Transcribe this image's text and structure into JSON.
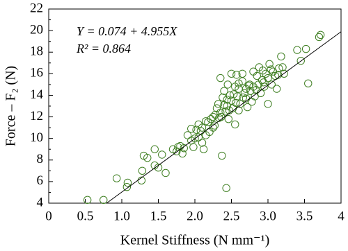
{
  "chart_data": {
    "type": "scatter",
    "xlabel": "Kernel Stiffness (N mm⁻¹)",
    "ylabel": "Force – F₂ (N)",
    "annotations": [
      "Y = 0.074 + 4.955X",
      "R² = 0.864"
    ],
    "fit": {
      "intercept": 0.074,
      "slope": 4.955
    },
    "color": "#3f7f22",
    "line_color": "#000000",
    "xlim": [
      0,
      4
    ],
    "ylim": [
      4,
      22
    ],
    "xticks": [
      0,
      0.5,
      {
        "value": 1,
        "label": "1.0"
      },
      1.5,
      {
        "value": 2,
        "label": "2.0"
      },
      2.5,
      {
        "value": 3,
        "label": "3.0"
      },
      3.5,
      4
    ],
    "yticks": [
      4,
      6,
      8,
      10,
      12,
      14,
      16,
      18,
      20,
      22
    ],
    "yminor_ticks": [
      5,
      7,
      9,
      11,
      13,
      15,
      17,
      19,
      21
    ],
    "x": [
      0.53,
      0.75,
      0.93,
      1.07,
      1.08,
      1.27,
      1.28,
      1.3,
      1.35,
      1.45,
      1.45,
      1.5,
      1.55,
      1.6,
      1.7,
      1.75,
      1.77,
      1.8,
      1.83,
      1.85,
      1.9,
      1.95,
      1.98,
      2.0,
      2.02,
      2.05,
      2.08,
      2.1,
      2.1,
      2.12,
      2.15,
      2.18,
      2.2,
      2.22,
      2.25,
      2.27,
      2.3,
      2.32,
      2.35,
      2.35,
      2.37,
      2.38,
      2.4,
      2.42,
      2.43,
      2.44,
      2.45,
      2.46,
      2.48,
      2.5,
      2.5,
      2.52,
      2.55,
      2.55,
      2.57,
      2.58,
      2.6,
      2.6,
      2.62,
      2.65,
      2.65,
      2.68,
      2.7,
      2.72,
      2.75,
      2.76,
      2.78,
      2.8,
      2.8,
      2.82,
      2.85,
      2.87,
      2.88,
      2.9,
      2.92,
      2.93,
      2.95,
      2.97,
      3.0,
      3.0,
      3.02,
      3.05,
      3.07,
      3.1,
      3.12,
      3.15,
      3.18,
      3.2,
      3.22,
      3.4,
      3.45,
      3.52,
      3.55,
      3.7,
      3.72,
      1.95,
      2.28,
      2.33,
      2.4,
      2.47,
      2.53,
      2.6,
      2.7,
      2.36,
      2.25,
      2.15,
      2.05,
      2.44,
      2.56,
      2.66,
      2.74,
      2.84,
      2.94,
      3.04,
      3.14
    ],
    "y": [
      4.3,
      4.3,
      6.3,
      5.5,
      5.9,
      6.1,
      7.0,
      8.4,
      8.2,
      9.0,
      7.5,
      7.3,
      8.5,
      6.8,
      9.0,
      8.8,
      9.2,
      9.3,
      8.6,
      9.1,
      10.3,
      9.8,
      9.2,
      10.0,
      10.8,
      11.3,
      10.7,
      11.0,
      9.6,
      9.0,
      10.3,
      11.5,
      10.6,
      11.8,
      12.0,
      11.2,
      12.8,
      13.2,
      15.6,
      12.4,
      8.4,
      13.8,
      14.4,
      12.5,
      5.4,
      13.0,
      15.0,
      11.8,
      14.0,
      13.5,
      16.0,
      12.8,
      14.8,
      11.3,
      15.9,
      13.9,
      12.6,
      14.6,
      13.2,
      15.3,
      16.0,
      14.2,
      13.7,
      12.9,
      15.0,
      14.4,
      13.4,
      16.2,
      14.8,
      13.9,
      15.8,
      15.0,
      16.6,
      14.2,
      15.4,
      16.3,
      14.8,
      16.0,
      15.6,
      13.2,
      16.9,
      15.0,
      16.2,
      15.8,
      14.6,
      16.5,
      17.6,
      16.6,
      16.0,
      18.2,
      17.2,
      18.3,
      15.1,
      19.4,
      19.6,
      10.9,
      12.2,
      11.9,
      13.1,
      12.6,
      14.1,
      15.1,
      14.6,
      12.0,
      11.0,
      11.6,
      10.1,
      13.6,
      13.3,
      13.8,
      14.9,
      14.5,
      15.2,
      16.4,
      15.9
    ]
  }
}
